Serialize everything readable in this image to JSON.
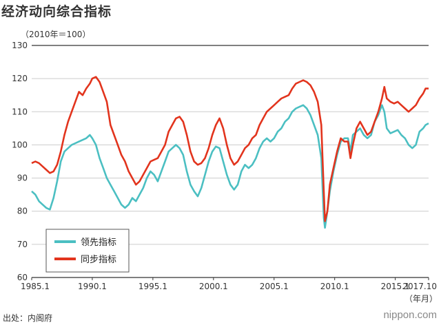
{
  "title": "经济动向综合指标",
  "unit_label": "（2010年＝100）",
  "source": "出处：内阁府",
  "brand": "nippon.com",
  "colors": {
    "leading": "#4bbfc2",
    "coincident": "#e2341d",
    "grid": "#cccccc",
    "axis": "#333333"
  },
  "chart_data": {
    "type": "line",
    "ylim": [
      60,
      130
    ],
    "yticks": [
      60,
      70,
      80,
      90,
      100,
      110,
      120,
      130
    ],
    "xlim": [
      1985.0,
      2017.75
    ],
    "xticks": [
      {
        "value": 1985.0,
        "label": "1985.1"
      },
      {
        "value": 1990.0,
        "label": "1990.1"
      },
      {
        "value": 1995.0,
        "label": "1995.1"
      },
      {
        "value": 2000.0,
        "label": "2000.1"
      },
      {
        "value": 2005.0,
        "label": "2005.1"
      },
      {
        "value": 2010.0,
        "label": "2010.1"
      },
      {
        "value": 2015.0,
        "label": "2015.1"
      },
      {
        "value": 2017.75,
        "label": "2017.10"
      }
    ],
    "x_unit": "（年月）",
    "grid": true,
    "legend_position": "bottom-left",
    "series": [
      {
        "name": "领先指标",
        "color": "#4bbfc2",
        "points": [
          [
            1985.0,
            86
          ],
          [
            1985.3,
            85
          ],
          [
            1985.6,
            83
          ],
          [
            1985.9,
            82
          ],
          [
            1986.2,
            81
          ],
          [
            1986.5,
            80.5
          ],
          [
            1986.8,
            84
          ],
          [
            1987.1,
            89
          ],
          [
            1987.4,
            95
          ],
          [
            1987.7,
            98
          ],
          [
            1988.0,
            99
          ],
          [
            1988.3,
            100
          ],
          [
            1988.6,
            100.5
          ],
          [
            1988.9,
            101
          ],
          [
            1989.2,
            101.5
          ],
          [
            1989.5,
            102
          ],
          [
            1989.8,
            103
          ],
          [
            1990.0,
            102
          ],
          [
            1990.3,
            100
          ],
          [
            1990.6,
            96
          ],
          [
            1990.9,
            93
          ],
          [
            1991.2,
            90
          ],
          [
            1991.5,
            88
          ],
          [
            1991.8,
            86
          ],
          [
            1992.1,
            84
          ],
          [
            1992.4,
            82
          ],
          [
            1992.7,
            81
          ],
          [
            1993.0,
            82
          ],
          [
            1993.3,
            84
          ],
          [
            1993.6,
            83
          ],
          [
            1993.9,
            85
          ],
          [
            1994.2,
            87
          ],
          [
            1994.5,
            90
          ],
          [
            1994.8,
            92
          ],
          [
            1995.1,
            91
          ],
          [
            1995.4,
            89
          ],
          [
            1995.7,
            92
          ],
          [
            1996.0,
            95
          ],
          [
            1996.3,
            98
          ],
          [
            1996.6,
            99
          ],
          [
            1996.9,
            100
          ],
          [
            1997.2,
            99
          ],
          [
            1997.5,
            97
          ],
          [
            1997.8,
            92
          ],
          [
            1998.1,
            88
          ],
          [
            1998.4,
            86
          ],
          [
            1998.7,
            84.5
          ],
          [
            1999.0,
            87
          ],
          [
            1999.3,
            91
          ],
          [
            1999.6,
            95
          ],
          [
            1999.9,
            98
          ],
          [
            2000.2,
            99.5
          ],
          [
            2000.5,
            99
          ],
          [
            2000.8,
            95
          ],
          [
            2001.1,
            91
          ],
          [
            2001.4,
            88
          ],
          [
            2001.7,
            86.5
          ],
          [
            2002.0,
            88
          ],
          [
            2002.3,
            92
          ],
          [
            2002.6,
            94
          ],
          [
            2002.9,
            93
          ],
          [
            2003.2,
            94
          ],
          [
            2003.5,
            96
          ],
          [
            2003.8,
            99
          ],
          [
            2004.1,
            101
          ],
          [
            2004.4,
            102
          ],
          [
            2004.7,
            101
          ],
          [
            2005.0,
            102
          ],
          [
            2005.3,
            104
          ],
          [
            2005.6,
            105
          ],
          [
            2005.9,
            107
          ],
          [
            2006.2,
            108
          ],
          [
            2006.5,
            110
          ],
          [
            2006.8,
            111
          ],
          [
            2007.1,
            111.5
          ],
          [
            2007.4,
            112
          ],
          [
            2007.7,
            111
          ],
          [
            2008.0,
            109
          ],
          [
            2008.3,
            106
          ],
          [
            2008.6,
            103
          ],
          [
            2008.9,
            96
          ],
          [
            2009.1,
            78
          ],
          [
            2009.2,
            75
          ],
          [
            2009.4,
            80
          ],
          [
            2009.6,
            86
          ],
          [
            2009.9,
            92
          ],
          [
            2010.2,
            97
          ],
          [
            2010.5,
            101
          ],
          [
            2010.8,
            102
          ],
          [
            2011.1,
            102
          ],
          [
            2011.3,
            98
          ],
          [
            2011.5,
            103
          ],
          [
            2011.8,
            104
          ],
          [
            2012.1,
            105
          ],
          [
            2012.4,
            103
          ],
          [
            2012.7,
            102
          ],
          [
            2013.0,
            103
          ],
          [
            2013.3,
            107
          ],
          [
            2013.6,
            109
          ],
          [
            2013.9,
            112
          ],
          [
            2014.1,
            110
          ],
          [
            2014.3,
            105
          ],
          [
            2014.6,
            103.5
          ],
          [
            2014.9,
            104
          ],
          [
            2015.2,
            104.5
          ],
          [
            2015.5,
            103
          ],
          [
            2015.8,
            102
          ],
          [
            2016.1,
            100
          ],
          [
            2016.4,
            99
          ],
          [
            2016.7,
            100
          ],
          [
            2017.0,
            104
          ],
          [
            2017.3,
            105
          ],
          [
            2017.5,
            106
          ],
          [
            2017.75,
            106.5
          ]
        ]
      },
      {
        "name": "同步指标",
        "color": "#e2341d",
        "points": [
          [
            1985.0,
            94.5
          ],
          [
            1985.3,
            95
          ],
          [
            1985.6,
            94.5
          ],
          [
            1985.9,
            93.5
          ],
          [
            1986.2,
            92.5
          ],
          [
            1986.5,
            91.5
          ],
          [
            1986.8,
            92
          ],
          [
            1987.1,
            94
          ],
          [
            1987.4,
            98
          ],
          [
            1987.7,
            103
          ],
          [
            1988.0,
            107
          ],
          [
            1988.3,
            110
          ],
          [
            1988.6,
            113
          ],
          [
            1988.9,
            116
          ],
          [
            1989.2,
            115
          ],
          [
            1989.5,
            117
          ],
          [
            1989.8,
            118.5
          ],
          [
            1990.0,
            120
          ],
          [
            1990.3,
            120.5
          ],
          [
            1990.6,
            119
          ],
          [
            1990.9,
            116
          ],
          [
            1991.2,
            113
          ],
          [
            1991.5,
            106
          ],
          [
            1991.8,
            103
          ],
          [
            1992.1,
            100
          ],
          [
            1992.4,
            97
          ],
          [
            1992.7,
            95
          ],
          [
            1993.0,
            92
          ],
          [
            1993.3,
            90
          ],
          [
            1993.6,
            88
          ],
          [
            1993.9,
            89
          ],
          [
            1994.2,
            91
          ],
          [
            1994.5,
            93
          ],
          [
            1994.8,
            95
          ],
          [
            1995.1,
            95.5
          ],
          [
            1995.4,
            96
          ],
          [
            1995.7,
            98
          ],
          [
            1996.0,
            100
          ],
          [
            1996.3,
            104
          ],
          [
            1996.6,
            106
          ],
          [
            1996.9,
            108
          ],
          [
            1997.2,
            108.5
          ],
          [
            1997.5,
            107
          ],
          [
            1997.8,
            103
          ],
          [
            1998.1,
            98
          ],
          [
            1998.4,
            95
          ],
          [
            1998.7,
            94
          ],
          [
            1999.0,
            94.5
          ],
          [
            1999.3,
            96
          ],
          [
            1999.6,
            99
          ],
          [
            1999.9,
            103
          ],
          [
            2000.2,
            106
          ],
          [
            2000.5,
            108
          ],
          [
            2000.8,
            105
          ],
          [
            2001.1,
            100
          ],
          [
            2001.4,
            96
          ],
          [
            2001.7,
            94
          ],
          [
            2002.0,
            95
          ],
          [
            2002.3,
            97
          ],
          [
            2002.6,
            99
          ],
          [
            2002.9,
            100
          ],
          [
            2003.2,
            102
          ],
          [
            2003.5,
            103
          ],
          [
            2003.8,
            106
          ],
          [
            2004.1,
            108
          ],
          [
            2004.4,
            110
          ],
          [
            2004.7,
            111
          ],
          [
            2005.0,
            112
          ],
          [
            2005.3,
            113
          ],
          [
            2005.6,
            114
          ],
          [
            2005.9,
            114.5
          ],
          [
            2006.2,
            115
          ],
          [
            2006.5,
            117
          ],
          [
            2006.8,
            118.5
          ],
          [
            2007.1,
            119
          ],
          [
            2007.4,
            119.5
          ],
          [
            2007.7,
            119
          ],
          [
            2008.0,
            118
          ],
          [
            2008.3,
            116
          ],
          [
            2008.6,
            113
          ],
          [
            2008.9,
            106
          ],
          [
            2009.1,
            86
          ],
          [
            2009.2,
            77
          ],
          [
            2009.4,
            80
          ],
          [
            2009.6,
            88
          ],
          [
            2009.9,
            93
          ],
          [
            2010.2,
            98
          ],
          [
            2010.5,
            102
          ],
          [
            2010.8,
            101
          ],
          [
            2011.1,
            101
          ],
          [
            2011.3,
            96
          ],
          [
            2011.5,
            100
          ],
          [
            2011.8,
            105
          ],
          [
            2012.1,
            107
          ],
          [
            2012.4,
            105
          ],
          [
            2012.7,
            103
          ],
          [
            2013.0,
            104
          ],
          [
            2013.3,
            107
          ],
          [
            2013.6,
            110
          ],
          [
            2013.9,
            114
          ],
          [
            2014.1,
            117.5
          ],
          [
            2014.3,
            114
          ],
          [
            2014.6,
            113
          ],
          [
            2014.9,
            112.5
          ],
          [
            2015.2,
            113
          ],
          [
            2015.5,
            112
          ],
          [
            2015.8,
            111
          ],
          [
            2016.1,
            110
          ],
          [
            2016.4,
            111
          ],
          [
            2016.7,
            112
          ],
          [
            2017.0,
            114
          ],
          [
            2017.3,
            115.5
          ],
          [
            2017.5,
            117
          ],
          [
            2017.75,
            117
          ]
        ]
      }
    ]
  }
}
